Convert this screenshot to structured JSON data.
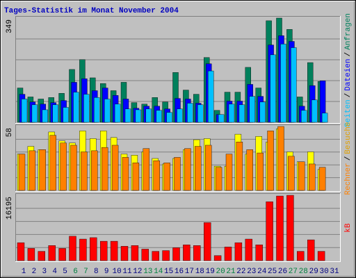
{
  "chart_data": [
    {
      "type": "bar",
      "title": "Tages-Statistik im Monat November 2004",
      "categories": [
        "1",
        "2",
        "3",
        "4",
        "5",
        "6",
        "7",
        "8",
        "9",
        "10",
        "11",
        "12",
        "13",
        "14",
        "15",
        "16",
        "17",
        "18",
        "19",
        "20",
        "21",
        "22",
        "23",
        "24",
        "25",
        "26",
        "27",
        "28",
        "29",
        "30",
        "31"
      ],
      "category_colors": [
        "#000080",
        "#000080",
        "#000080",
        "#000080",
        "#000080",
        "#008040",
        "#008040",
        "#000080",
        "#000080",
        "#000080",
        "#000080",
        "#000080",
        "#008040",
        "#008040",
        "#000080",
        "#000080",
        "#000080",
        "#000080",
        "#000080",
        "#008040",
        "#008040",
        "#000080",
        "#000080",
        "#000080",
        "#000080",
        "#000080",
        "#008040",
        "#008040",
        "#000080",
        "#000080",
        "#000080"
      ],
      "legend_separator": "/",
      "ylim": [
        0,
        349
      ],
      "yticks": [
        349
      ],
      "series": [
        {
          "name": "Seiten",
          "color": "#00C0FF",
          "values": [
            78,
            59,
            42,
            59,
            50,
            101,
            94,
            83,
            78,
            61,
            45,
            42,
            45,
            40,
            33,
            45,
            64,
            59,
            172,
            26,
            61,
            59,
            87,
            68,
            226,
            262,
            250,
            40,
            75,
            31,
            null
          ]
        },
        {
          "name": "Dateien",
          "color": "#0000FF",
          "values": [
            94,
            68,
            61,
            66,
            73,
            134,
            146,
            106,
            115,
            90,
            78,
            47,
            54,
            54,
            45,
            80,
            78,
            64,
            196,
            26,
            71,
            71,
            127,
            87,
            259,
            290,
            271,
            54,
            123,
            139,
            null
          ]
        },
        {
          "name": "Anfragen",
          "color": "#00805C",
          "values": [
            115,
            85,
            78,
            83,
            97,
            177,
            210,
            149,
            130,
            106,
            134,
            66,
            61,
            83,
            68,
            167,
            108,
            94,
            217,
            40,
            101,
            101,
            184,
            115,
            340,
            349,
            311,
            85,
            200,
            137,
            null
          ]
        }
      ]
    },
    {
      "type": "bar",
      "legend_separator": "/",
      "ylim": [
        0,
        58
      ],
      "yticks": [
        58
      ],
      "series": [
        {
          "name": "Rechner",
          "color": "#FF8000",
          "values": [
            33,
            36,
            37,
            50,
            43,
            41,
            35,
            36,
            39,
            41,
            30,
            25,
            38,
            27,
            25,
            30,
            38,
            40,
            41,
            21,
            33,
            44,
            37,
            34,
            54,
            58,
            31,
            26,
            24,
            21,
            null
          ]
        },
        {
          "name": "Besuche",
          "color": "#FFFF00",
          "values": [
            33,
            40,
            37,
            53,
            45,
            43,
            54,
            47,
            54,
            48,
            33,
            32,
            35,
            29,
            24,
            29,
            37,
            46,
            47,
            22,
            22,
            51,
            33,
            49,
            44,
            56,
            35,
            26,
            35,
            19,
            null
          ]
        }
      ]
    },
    {
      "type": "bar",
      "ylim": [
        0,
        16195
      ],
      "yticks": [
        16195
      ],
      "series": [
        {
          "name": "kB",
          "color": "#FF0000",
          "values": [
            4450,
            3030,
            2310,
            3740,
            3030,
            6050,
            5340,
            5700,
            4810,
            4810,
            3560,
            3740,
            2850,
            2310,
            2490,
            3200,
            3920,
            3740,
            9430,
            1250,
            3380,
            4450,
            5340,
            3920,
            14600,
            16020,
            16195,
            2310,
            5160,
            2310,
            null
          ]
        }
      ]
    }
  ]
}
